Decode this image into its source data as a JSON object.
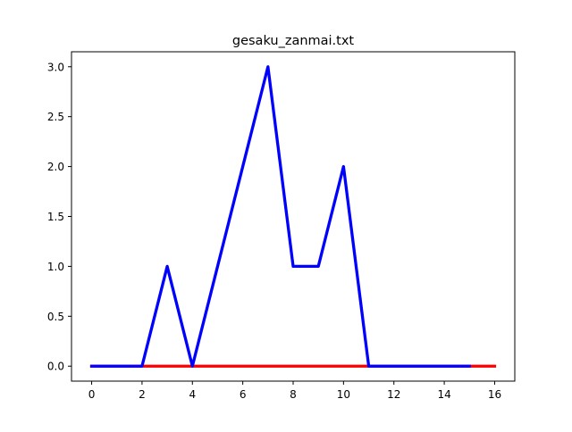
{
  "chart_data": {
    "type": "line",
    "title": "gesaku_zanmai.txt",
    "xlabel": "",
    "ylabel": "",
    "xlim": [
      -0.8,
      16.8
    ],
    "ylim": [
      -0.15,
      3.15
    ],
    "x_ticks": [
      0,
      2,
      4,
      6,
      8,
      10,
      12,
      14,
      16
    ],
    "y_ticks": [
      0.0,
      0.5,
      1.0,
      1.5,
      2.0,
      2.5,
      3.0
    ],
    "x_tick_labels": [
      "0",
      "2",
      "4",
      "6",
      "8",
      "10",
      "12",
      "14",
      "16"
    ],
    "y_tick_labels": [
      "0.0",
      "0.5",
      "1.0",
      "1.5",
      "2.0",
      "2.5",
      "3.0"
    ],
    "grid": false,
    "series": [
      {
        "color": "#ff0000",
        "x": [
          0,
          1,
          2,
          3,
          4,
          5,
          6,
          7,
          8,
          9,
          10,
          11,
          12,
          13,
          14,
          15,
          16
        ],
        "y": [
          0,
          0,
          0,
          0,
          0,
          0,
          0,
          0,
          0,
          0,
          0,
          0,
          0,
          0,
          0,
          0,
          0
        ]
      },
      {
        "color": "#0000ff",
        "x": [
          0,
          1,
          2,
          3,
          4,
          5,
          6,
          7,
          8,
          9,
          10,
          11,
          12,
          13,
          14,
          15
        ],
        "y": [
          0,
          0,
          0,
          1,
          0,
          1,
          2,
          3,
          1,
          1,
          2,
          0,
          0,
          0,
          0,
          0
        ]
      }
    ]
  }
}
